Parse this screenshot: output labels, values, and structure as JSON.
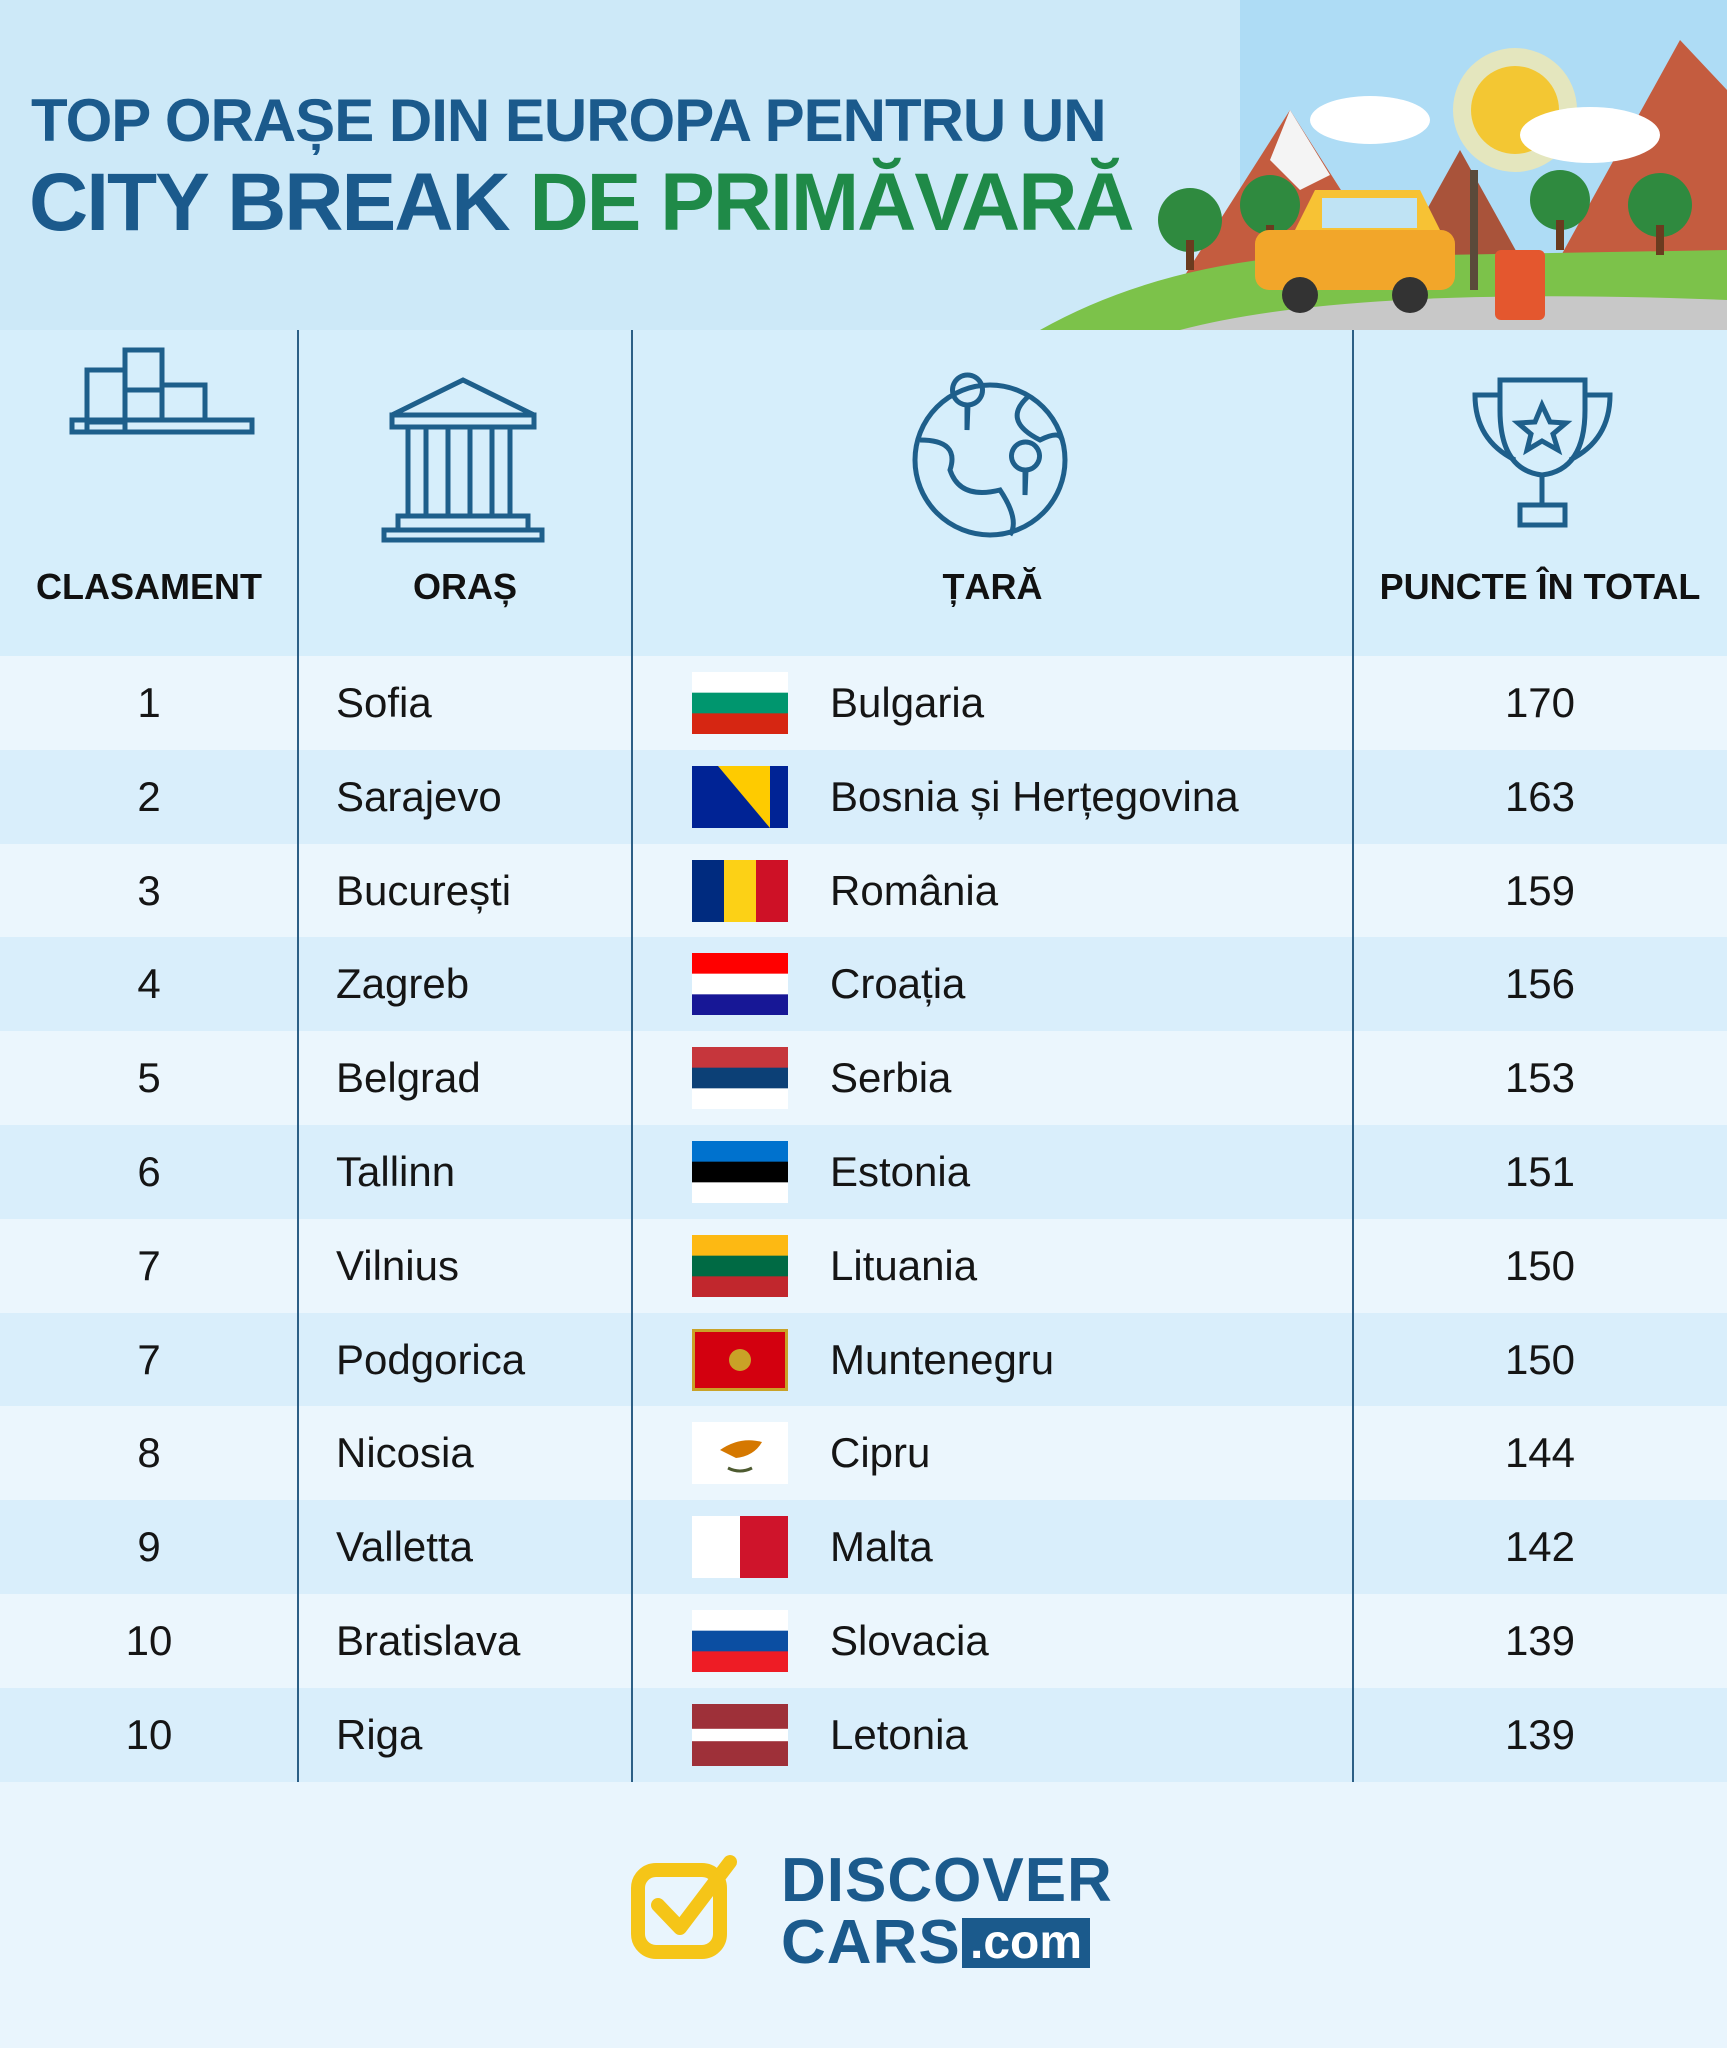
{
  "header": {
    "title_line1": "TOP ORAȘE DIN EUROPA PENTRU UN",
    "title_line2a": "CITY BREAK",
    "title_line2b": "DE PRIMĂVARĂ"
  },
  "table": {
    "columns": [
      "CLASAMENT",
      "ORAȘ",
      "ȚARĂ",
      "PUNCTE ÎN TOTAL"
    ],
    "rows": [
      [
        1,
        "Sofia",
        "Bulgaria",
        170
      ],
      [
        2,
        "Sarajevo",
        "Bosnia și Herțegovina",
        163
      ],
      [
        3,
        "București",
        "România",
        159
      ],
      [
        4,
        "Zagreb",
        "Croația",
        156
      ],
      [
        5,
        "Belgrad",
        "Serbia",
        153
      ],
      [
        6,
        "Tallinn",
        "Estonia",
        151
      ],
      [
        7,
        "Vilnius",
        "Lituania",
        150
      ],
      [
        7,
        "Podgorica",
        "Muntenegru",
        150
      ],
      [
        8,
        "Nicosia",
        "Cipru",
        144
      ],
      [
        9,
        "Valletta",
        "Malta",
        142
      ],
      [
        10,
        "Bratislava",
        "Slovacia",
        139
      ],
      [
        10,
        "Riga",
        "Letonia",
        139
      ]
    ]
  },
  "logo": {
    "line1": "DISCOVER",
    "line2": "CARS",
    "suffix": ".com"
  }
}
